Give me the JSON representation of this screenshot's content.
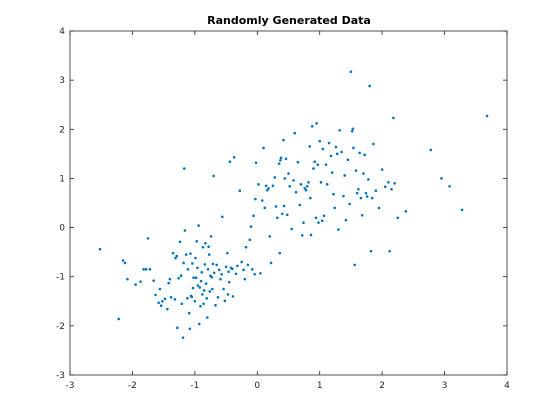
{
  "chart_data": {
    "type": "scatter",
    "title": "Randomly Generated Data",
    "xlabel": "",
    "ylabel": "",
    "xlim": [
      -3,
      4
    ],
    "ylim": [
      -3,
      4
    ],
    "xticks": [
      -3,
      -2,
      -1,
      0,
      1,
      2,
      3,
      4
    ],
    "yticks": [
      -3,
      -2,
      -1,
      0,
      1,
      2,
      3,
      4
    ],
    "grid": false,
    "marker_color": "#0072BD",
    "series": [
      {
        "points": [
          [
            -2.52,
            -0.44
          ],
          [
            -2.22,
            -1.86
          ],
          [
            -2.15,
            -0.67
          ],
          [
            -2.12,
            -0.72
          ],
          [
            -2.08,
            -1.05
          ],
          [
            -1.95,
            -1.16
          ],
          [
            -1.87,
            -1.1
          ],
          [
            -1.82,
            -0.85
          ],
          [
            -1.78,
            -0.85
          ],
          [
            -1.75,
            -0.22
          ],
          [
            -1.72,
            -0.85
          ],
          [
            -1.66,
            -1.08
          ],
          [
            -1.63,
            -1.37
          ],
          [
            -1.58,
            -1.53
          ],
          [
            -1.56,
            -1.25
          ],
          [
            -1.54,
            -1.59
          ],
          [
            -1.52,
            -1.5
          ],
          [
            -1.48,
            -1.45
          ],
          [
            -1.44,
            -1.66
          ],
          [
            -1.42,
            -1.13
          ],
          [
            -1.4,
            -1.05
          ],
          [
            -1.38,
            -1.42
          ],
          [
            -1.35,
            -0.52
          ],
          [
            -1.32,
            -1.46
          ],
          [
            -1.31,
            -0.62
          ],
          [
            -1.29,
            -0.58
          ],
          [
            -1.28,
            -2.04
          ],
          [
            -1.26,
            -1.03
          ],
          [
            -1.24,
            -0.29
          ],
          [
            -1.22,
            -0.98
          ],
          [
            -1.21,
            -1.55
          ],
          [
            -1.19,
            -2.24
          ],
          [
            -1.18,
            -0.72
          ],
          [
            -1.17,
            1.2
          ],
          [
            -1.16,
            -0.06
          ],
          [
            -1.14,
            -0.55
          ],
          [
            -1.12,
            -1.44
          ],
          [
            -1.11,
            -0.85
          ],
          [
            -1.09,
            -1.74
          ],
          [
            -1.08,
            -2.06
          ],
          [
            -1.07,
            -0.53
          ],
          [
            -1.06,
            -1.39
          ],
          [
            -1.05,
            -1.41
          ],
          [
            -1.04,
            -0.73
          ],
          [
            -1.03,
            -1.23
          ],
          [
            -1.02,
            -1.02
          ],
          [
            -1.0,
            -1.5
          ],
          [
            -0.99,
            -0.62
          ],
          [
            -0.98,
            -1.02
          ],
          [
            -0.97,
            -0.28
          ],
          [
            -0.96,
            -0.82
          ],
          [
            -0.95,
            -1.18
          ],
          [
            -0.94,
            0.04
          ],
          [
            -0.93,
            -1.96
          ],
          [
            -0.92,
            -1.22
          ],
          [
            -0.91,
            -1.6
          ],
          [
            -0.9,
            -1.09
          ],
          [
            -0.89,
            -0.91
          ],
          [
            -0.88,
            -1.36
          ],
          [
            -0.87,
            -0.4
          ],
          [
            -0.86,
            -1.55
          ],
          [
            -0.85,
            -1.28
          ],
          [
            -0.84,
            -0.75
          ],
          [
            -0.83,
            -0.32
          ],
          [
            -0.82,
            -1.14
          ],
          [
            -0.81,
            -1.44
          ],
          [
            -0.8,
            -1.83
          ],
          [
            -0.79,
            -0.85
          ],
          [
            -0.78,
            -0.39
          ],
          [
            -0.77,
            -0.55
          ],
          [
            -0.76,
            -1.3
          ],
          [
            -0.75,
            -0.98
          ],
          [
            -0.74,
            -0.18
          ],
          [
            -0.73,
            -1.01
          ],
          [
            -0.72,
            -1.25
          ],
          [
            -0.71,
            -0.74
          ],
          [
            -0.7,
            1.05
          ],
          [
            -0.69,
            -0.92
          ],
          [
            -0.67,
            -1.58
          ],
          [
            -0.65,
            -0.76
          ],
          [
            -0.63,
            -1.42
          ],
          [
            -0.61,
            -0.86
          ],
          [
            -0.59,
            -1.05
          ],
          [
            -0.57,
            -0.95
          ],
          [
            -0.56,
            0.22
          ],
          [
            -0.54,
            -1.25
          ],
          [
            -0.52,
            -1.49
          ],
          [
            -0.5,
            -0.8
          ],
          [
            -0.48,
            -0.52
          ],
          [
            -0.47,
            -1.36
          ],
          [
            -0.46,
            -0.9
          ],
          [
            -0.45,
            -1.11
          ],
          [
            -0.44,
            1.34
          ],
          [
            -0.42,
            -0.82
          ],
          [
            -0.4,
            -0.84
          ],
          [
            -0.39,
            -1.4
          ],
          [
            -0.37,
            1.43
          ],
          [
            -0.34,
            -0.94
          ],
          [
            -0.32,
            -0.78
          ],
          [
            -0.28,
            0.75
          ],
          [
            -0.25,
            -0.7
          ],
          [
            -0.22,
            -0.86
          ],
          [
            -0.2,
            -1.05
          ],
          [
            -0.18,
            -0.4
          ],
          [
            -0.15,
            -0.76
          ],
          [
            -0.12,
            -0.25
          ],
          [
            -0.1,
            0.02
          ],
          [
            -0.08,
            -0.85
          ],
          [
            -0.06,
            0.24
          ],
          [
            -0.04,
            -0.95
          ],
          [
            -0.03,
            0.58
          ],
          [
            -0.02,
            1.32
          ],
          [
            0.02,
            0.88
          ],
          [
            0.05,
            -0.93
          ],
          [
            0.08,
            0.55
          ],
          [
            0.1,
            1.62
          ],
          [
            0.12,
            0.4
          ],
          [
            0.14,
            0.85
          ],
          [
            0.16,
            0.76
          ],
          [
            0.18,
            0.8
          ],
          [
            0.2,
            -0.18
          ],
          [
            0.22,
            -0.72
          ],
          [
            0.25,
            0.85
          ],
          [
            0.28,
            1.02
          ],
          [
            0.3,
            0.43
          ],
          [
            0.32,
            0.2
          ],
          [
            0.35,
            1.3
          ],
          [
            0.36,
            -0.52
          ],
          [
            0.37,
            1.37
          ],
          [
            0.38,
            1.42
          ],
          [
            0.4,
            0.28
          ],
          [
            0.42,
            1.78
          ],
          [
            0.43,
            0.44
          ],
          [
            0.44,
            1.0
          ],
          [
            0.46,
            1.4
          ],
          [
            0.48,
            0.26
          ],
          [
            0.5,
            1.1
          ],
          [
            0.52,
            0.84
          ],
          [
            0.55,
            -0.03
          ],
          [
            0.58,
            0.96
          ],
          [
            0.6,
            1.92
          ],
          [
            0.62,
            0.72
          ],
          [
            0.65,
            1.33
          ],
          [
            0.68,
            0.46
          ],
          [
            0.7,
            0.88
          ],
          [
            0.72,
            -0.16
          ],
          [
            0.74,
            0.1
          ],
          [
            0.76,
            0.8
          ],
          [
            0.78,
            0.76
          ],
          [
            0.8,
            0.84
          ],
          [
            0.82,
            0.92
          ],
          [
            0.84,
            1.65
          ],
          [
            0.85,
            0.6
          ],
          [
            0.86,
            -0.15
          ],
          [
            0.88,
            2.06
          ],
          [
            0.9,
            1.2
          ],
          [
            0.92,
            1.34
          ],
          [
            0.94,
            0.2
          ],
          [
            0.95,
            2.12
          ],
          [
            0.97,
            1.28
          ],
          [
            0.98,
            0.1
          ],
          [
            1.0,
            1.76
          ],
          [
            1.02,
            0.92
          ],
          [
            1.04,
            0.14
          ],
          [
            1.05,
            1.6
          ],
          [
            1.07,
            0.24
          ],
          [
            1.1,
            1.28
          ],
          [
            1.12,
            0.88
          ],
          [
            1.15,
            1.72
          ],
          [
            1.18,
            1.46
          ],
          [
            1.2,
            1.12
          ],
          [
            1.22,
            0.68
          ],
          [
            1.24,
            0.4
          ],
          [
            1.26,
            1.64
          ],
          [
            1.28,
            1.5
          ],
          [
            1.3,
            -0.04
          ],
          [
            1.32,
            1.98
          ],
          [
            1.35,
            1.54
          ],
          [
            1.38,
            0.64
          ],
          [
            1.4,
            1.06
          ],
          [
            1.42,
            0.15
          ],
          [
            1.45,
            1.38
          ],
          [
            1.48,
            0.48
          ],
          [
            1.5,
            3.17
          ],
          [
            1.52,
            1.96
          ],
          [
            1.53,
            2.01
          ],
          [
            1.54,
            1.62
          ],
          [
            1.56,
            -0.76
          ],
          [
            1.58,
            1.16
          ],
          [
            1.6,
            0.7
          ],
          [
            1.62,
            0.78
          ],
          [
            1.64,
            1.52
          ],
          [
            1.66,
            0.6
          ],
          [
            1.68,
            0.25
          ],
          [
            1.7,
            1.1
          ],
          [
            1.72,
            1.48
          ],
          [
            1.74,
            0.7
          ],
          [
            1.76,
            0.63
          ],
          [
            1.78,
            0.98
          ],
          [
            1.8,
            2.88
          ],
          [
            1.82,
            -0.48
          ],
          [
            1.84,
            0.6
          ],
          [
            1.86,
            1.7
          ],
          [
            1.9,
            0.75
          ],
          [
            1.95,
            0.4
          ],
          [
            2.0,
            1.18
          ],
          [
            2.05,
            0.83
          ],
          [
            2.1,
            0.92
          ],
          [
            2.12,
            -0.48
          ],
          [
            2.15,
            0.78
          ],
          [
            2.18,
            2.23
          ],
          [
            2.2,
            0.9
          ],
          [
            2.25,
            0.2
          ],
          [
            2.38,
            0.33
          ],
          [
            2.78,
            1.58
          ],
          [
            2.95,
            1.0
          ],
          [
            3.08,
            0.84
          ],
          [
            3.28,
            0.36
          ],
          [
            3.68,
            2.27
          ]
        ]
      }
    ]
  }
}
